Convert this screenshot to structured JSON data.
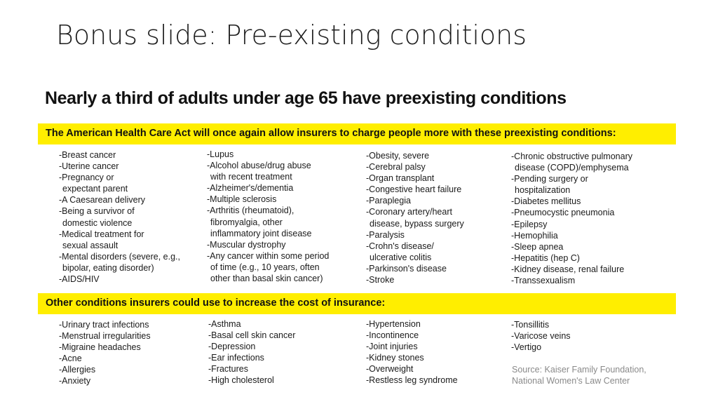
{
  "slide": {
    "title": "Bonus slide: Pre-existing conditions"
  },
  "figure": {
    "headline": "Nearly a third of adults under age 65 have preexisting conditions",
    "section1": {
      "heading": "The American Health Care Act will once again allow insurers to charge people more with these preexisting conditions:",
      "columns": [
        [
          "-Breast cancer",
          "-Uterine cancer",
          "-Pregnancy or",
          " expectant parent",
          "-A Caesarean delivery",
          "-Being a survivor of",
          " domestic violence",
          "-Medical treatment for",
          " sexual assault",
          "-Mental disorders (severe, e.g.,",
          " bipolar, eating disorder)",
          "-AIDS/HIV"
        ],
        [
          "-Lupus",
          "-Alcohol abuse/drug abuse",
          " with recent treatment",
          "-Alzheimer's/dementia",
          "-Multiple sclerosis",
          "-Arthritis (rheumatoid),",
          " fibromyalgia, other",
          " inflammatory joint disease",
          "-Muscular dystrophy",
          "-Any cancer within some period",
          " of time (e.g., 10 years, often",
          " other than basal skin cancer)"
        ],
        [
          "-Obesity, severe",
          "-Cerebral palsy",
          "-Organ transplant",
          "-Congestive heart failure",
          "-Paraplegia",
          "-Coronary artery/heart",
          " disease, bypass surgery",
          "-Paralysis",
          "-Crohn's disease/",
          " ulcerative colitis",
          "-Parkinson's disease",
          "-Stroke"
        ],
        [
          "-Chronic obstructive pulmonary",
          " disease (COPD)/emphysema",
          "-Pending surgery or",
          " hospitalization",
          "-Diabetes mellitus",
          "-Pneumocystic pneumonia",
          "-Epilepsy",
          "-Hemophilia",
          "-Sleep apnea",
          "-Hepatitis (hep C)",
          "-Kidney disease, renal failure",
          "-Transsexualism"
        ]
      ]
    },
    "section2": {
      "heading": "Other conditions insurers could use to increase the cost of insurance:",
      "columns": [
        [
          "-Urinary tract infections",
          "-Menstrual irregularities",
          "-Migraine headaches",
          "-Acne",
          "-Allergies",
          "-Anxiety"
        ],
        [
          "-Asthma",
          "-Basal cell skin cancer",
          "-Depression",
          "-Ear infections",
          "-Fractures",
          "-High cholesterol"
        ],
        [
          "-Hypertension",
          "-Incontinence",
          "-Joint injuries",
          "-Kidney stones",
          "-Overweight",
          "-Restless leg syndrome"
        ],
        [
          "-Tonsillitis",
          "-Varicose veins",
          "-Vertigo"
        ]
      ]
    },
    "source": [
      "Source: Kaiser Family Foundation,",
      "National Women's Law Center"
    ],
    "colors": {
      "highlight": "#ffee00",
      "source_text": "#8a8a8a"
    }
  }
}
